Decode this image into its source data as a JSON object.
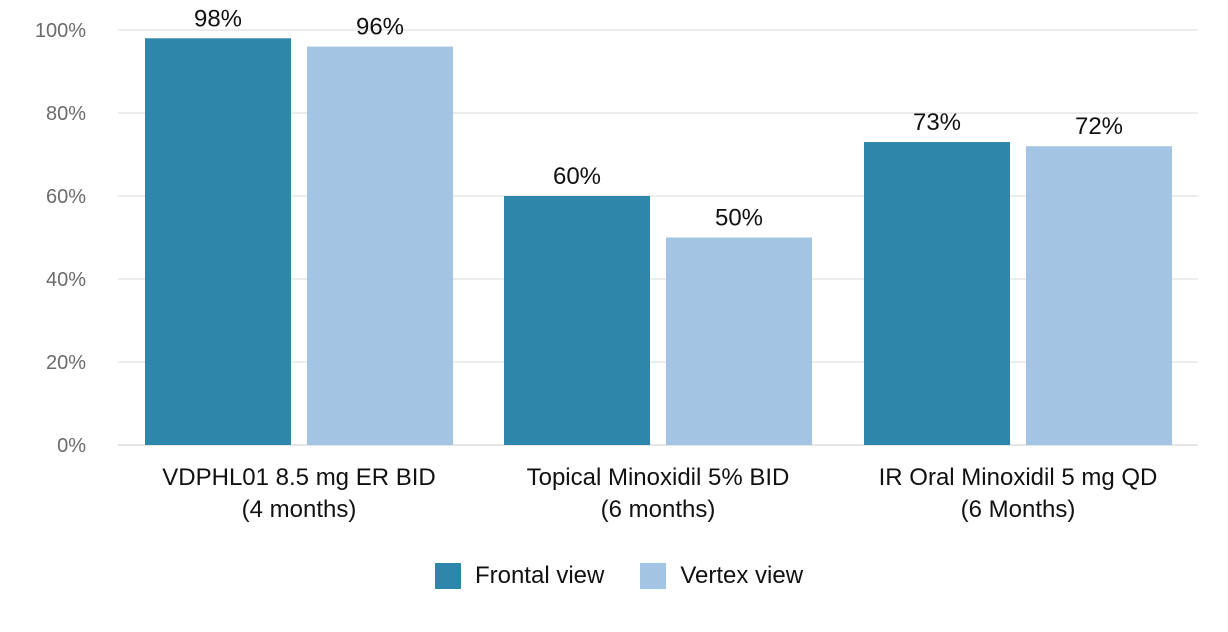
{
  "chart_data": {
    "type": "bar",
    "categories": [
      [
        "VDPHL01 8.5 mg ER BID",
        "(4 months)"
      ],
      [
        "Topical Minoxidil 5% BID",
        "(6 months)"
      ],
      [
        "IR Oral Minoxidil 5 mg QD",
        "(6 Months)"
      ]
    ],
    "series": [
      {
        "name": "Frontal view",
        "values": [
          98,
          60,
          73
        ],
        "labels": [
          "98%",
          "60%",
          "73%"
        ],
        "color": "#2e86ab"
      },
      {
        "name": "Vertex view",
        "values": [
          96,
          50,
          72
        ],
        "labels": [
          "96%",
          "50%",
          "72%"
        ],
        "color": "#a3c4e2"
      }
    ],
    "yticks": [
      0,
      20,
      40,
      60,
      80,
      100
    ],
    "ytick_labels": [
      "0%",
      "20%",
      "40%",
      "60%",
      "80%",
      "100%"
    ],
    "ylim": [
      0,
      100
    ],
    "title": "",
    "xlabel": "",
    "ylabel": "",
    "grid": true,
    "grid_color": "#e6e6e6",
    "legend_position": "bottom-center"
  }
}
